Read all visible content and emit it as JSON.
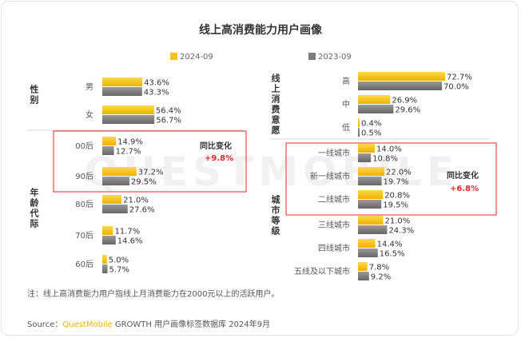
{
  "title": "线上高消费能力用户画像",
  "legend": [
    {
      "label": "2024-09",
      "color": "#f8c21a"
    },
    {
      "label": "2023-09",
      "color": "#7c7c7c"
    }
  ],
  "chart_data": [
    {
      "type": "bar",
      "orientation": "horizontal",
      "title": "",
      "groups": [
        {
          "label": "性别",
          "categories": [
            "男",
            "女"
          ]
        },
        {
          "label": "年龄代际",
          "categories": [
            "00后",
            "90后",
            "80后",
            "70后",
            "60后"
          ]
        }
      ],
      "categories": [
        "男",
        "女",
        "00后",
        "90后",
        "80后",
        "70后",
        "60后"
      ],
      "series": [
        {
          "name": "2024-09",
          "values": [
            43.6,
            56.4,
            14.9,
            37.2,
            21.0,
            11.7,
            5.0
          ]
        },
        {
          "name": "2023-09",
          "values": [
            43.3,
            56.7,
            12.7,
            29.5,
            27.6,
            14.6,
            5.7
          ]
        }
      ],
      "value_labels": {
        "2024-09": [
          "43.6%",
          "56.4%",
          "14.9%",
          "37.2%",
          "21.0%",
          "11.7%",
          "5.0%"
        ],
        "2023-09": [
          "43.3%",
          "56.7%",
          "12.7%",
          "29.5%",
          "27.6%",
          "14.6%",
          "5.7%"
        ]
      },
      "unit": "%",
      "callout": {
        "label": "同比变化",
        "value": "+9.8%",
        "categories": [
          "00后",
          "90后"
        ]
      }
    },
    {
      "type": "bar",
      "orientation": "horizontal",
      "title": "",
      "groups": [
        {
          "label": "线上消费意愿",
          "categories": [
            "高",
            "中",
            "低"
          ]
        },
        {
          "label": "城市等级",
          "categories": [
            "一线城市",
            "新一线城市",
            "二线城市",
            "三线城市",
            "四线城市",
            "五线及以下城市"
          ]
        }
      ],
      "categories": [
        "高",
        "中",
        "低",
        "一线城市",
        "新一线城市",
        "二线城市",
        "三线城市",
        "四线城市",
        "五线及以下城市"
      ],
      "series": [
        {
          "name": "2024-09",
          "values": [
            72.7,
            26.9,
            0.4,
            14.0,
            22.0,
            20.8,
            21.0,
            14.4,
            7.8
          ]
        },
        {
          "name": "2023-09",
          "values": [
            70.0,
            29.6,
            0.5,
            10.8,
            19.7,
            19.5,
            24.3,
            16.5,
            9.2
          ]
        }
      ],
      "value_labels": {
        "2024-09": [
          "72.7%",
          "26.9%",
          "0.4%",
          "14.0%",
          "22.0%",
          "20.8%",
          "21.0%",
          "14.4%",
          "7.8%"
        ],
        "2023-09": [
          "70.0%",
          "29.6%",
          "0.5%",
          "10.8%",
          "19.7%",
          "19.5%",
          "24.3%",
          "16.5%",
          "9.2%"
        ]
      },
      "unit": "%",
      "callout": {
        "label": "同比变化",
        "value": "+6.8%",
        "categories": [
          "一线城市",
          "新一线城市",
          "二线城市"
        ]
      }
    }
  ],
  "note": "注：线上高消费能力用户指线上月消费能力在2000元以上的活跃用户。",
  "source": {
    "prefix": "Source：",
    "brand": "QuestMobile",
    "rest": " GROWTH 用户画像标签数据库 2024年9月"
  },
  "watermark": "QUESTMOBILE",
  "colors": {
    "highlight": "#e8262a",
    "brand": "#f0b400",
    "text": "#333333",
    "category": "#555555",
    "divider": "#d6d6d6"
  }
}
